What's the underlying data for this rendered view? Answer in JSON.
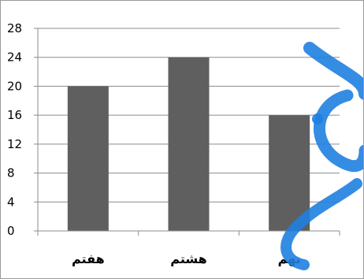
{
  "chart_data": {
    "type": "bar",
    "categories": [
      "هفتم",
      "هشتم",
      "نهم"
    ],
    "values": [
      20,
      24,
      16
    ],
    "title": "",
    "xlabel": "",
    "ylabel": "",
    "ylim": [
      0,
      28
    ],
    "yticks": [
      0,
      4,
      8,
      12,
      16,
      20,
      24,
      28
    ],
    "grid": true,
    "legend": "none",
    "bar_color": "#5f5f5f",
    "grid_color": "#8c8c8c",
    "watermark_color": "#1f7fe0"
  }
}
